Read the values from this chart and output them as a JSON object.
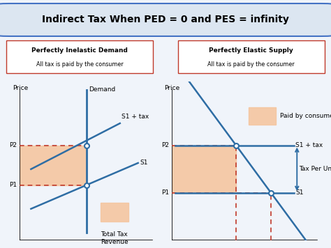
{
  "title": "Indirect Tax When PED = 0 and PES = infinity",
  "title_fontsize": 10,
  "title_bg": "#dce6f1",
  "title_border": "#4472c4",
  "left_box_title": "Perfectly Inelastic Demand",
  "left_box_sub": "All tax is paid by the consumer",
  "right_box_title": "Perfectly Elastic Supply",
  "right_box_sub": "All tax is paid by the consumer",
  "box_border": "#c0392b",
  "bg_color": "#f0f4fa",
  "panel_bg": "#ffffff",
  "line_color": "#2e6da4",
  "dashed_color": "#c0392b",
  "shading_color": "#f5c6a0",
  "text_color": "#000000",
  "font_size": 6.5
}
